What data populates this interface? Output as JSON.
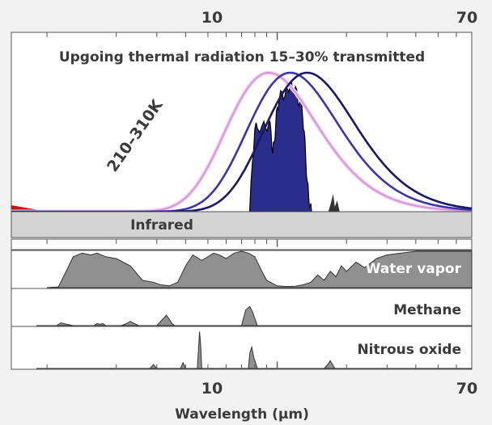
{
  "chart_data": {
    "type": "area",
    "x_axis": {
      "label": "Wavelength (µm)",
      "scale": "log",
      "range": [
        0.7,
        70
      ],
      "tick_labels": [
        "10",
        "70"
      ],
      "tick_values": [
        10,
        70
      ]
    },
    "panels": [
      {
        "name": "thermal",
        "title": "Upgoing thermal radiation 15–30% transmitted",
        "band_label": "Infrared",
        "curve_label": "210–310K",
        "curves": [
          {
            "name": "",
            "color": "#d79ad7",
            "peak_x": 9.2
          },
          {
            "name": "",
            "color": "#3c35a8",
            "peak_x": 11.4
          },
          {
            "name": "",
            "color": "#1a1763",
            "peak_x": 13.5
          }
        ],
        "transmitted_fill": "#2a2d8c",
        "transmitted_x": [
          7.6,
          7.8,
          8.0,
          8.2,
          8.6,
          8.9,
          9.2,
          9.4,
          9.55,
          9.7,
          9.85,
          10.0,
          10.2,
          10.5,
          10.8,
          11.1,
          11.4,
          11.7,
          12.0,
          12.3,
          12.6,
          12.9,
          13.1,
          13.3,
          13.5,
          13.7,
          13.9,
          14.1
        ],
        "transmitted_y": [
          0.02,
          0.35,
          0.6,
          0.6,
          0.62,
          0.6,
          0.64,
          0.58,
          0.42,
          0.5,
          0.62,
          0.75,
          0.8,
          0.86,
          0.83,
          0.88,
          0.92,
          0.86,
          0.9,
          0.78,
          0.82,
          0.68,
          0.58,
          0.38,
          0.22,
          0.1,
          0.04,
          0.0
        ],
        "curve_x": [
          0.7,
          70
        ]
      },
      {
        "name": "water",
        "label": "Water vapor",
        "fill": "#909090",
        "x": [
          1.0,
          1.12,
          1.18,
          1.3,
          1.42,
          1.55,
          1.65,
          1.8,
          2.0,
          2.3,
          2.6,
          2.9,
          3.1,
          3.4,
          3.7,
          4.0,
          4.3,
          4.7,
          5.0,
          5.3,
          5.6,
          6.0,
          6.5,
          7.0,
          7.5,
          8.0,
          8.5,
          9.0,
          10.0,
          11.0,
          12.0,
          13.0,
          14.0,
          15.0,
          16.0,
          17.0,
          18.0,
          19.0,
          20.0,
          22.0,
          24.0,
          27.0,
          30.0,
          40.0,
          50.0,
          60.0,
          70.0
        ],
        "y": [
          0.0,
          0.02,
          0.3,
          0.85,
          0.95,
          0.9,
          0.95,
          0.85,
          0.8,
          0.6,
          0.2,
          0.15,
          0.08,
          0.05,
          0.15,
          0.6,
          0.9,
          0.75,
          0.85,
          0.95,
          0.9,
          0.8,
          0.95,
          1.0,
          0.95,
          0.85,
          0.5,
          0.2,
          0.05,
          0.03,
          0.04,
          0.08,
          0.15,
          0.35,
          0.2,
          0.45,
          0.3,
          0.6,
          0.45,
          0.7,
          0.55,
          0.8,
          0.9,
          1.0,
          1.0,
          1.0,
          1.0
        ]
      },
      {
        "name": "methane",
        "label": "Methane",
        "fill": "#909090",
        "x": [
          0.9,
          1.1,
          1.15,
          1.2,
          1.3,
          1.6,
          1.65,
          1.7,
          1.75,
          1.8,
          2.1,
          2.2,
          2.3,
          2.4,
          2.5,
          3.0,
          3.2,
          3.3,
          3.4,
          3.5,
          3.6,
          7.0,
          7.3,
          7.6,
          7.8,
          8.0,
          8.2,
          70.0
        ],
        "y": [
          0.0,
          0.0,
          0.08,
          0.05,
          0.0,
          0.0,
          0.06,
          0.04,
          0.06,
          0.0,
          0.0,
          0.05,
          0.12,
          0.06,
          0.0,
          0.0,
          0.2,
          0.3,
          0.18,
          0.05,
          0.0,
          0.0,
          0.45,
          0.55,
          0.4,
          0.2,
          0.0,
          0.0
        ]
      },
      {
        "name": "nitrous",
        "label": "Nitrous oxide",
        "fill": "#909090",
        "x": [
          0.9,
          2.8,
          2.9,
          3.0,
          3.8,
          3.9,
          4.0,
          4.5,
          4.55,
          4.6,
          4.65,
          4.7,
          7.5,
          7.6,
          7.75,
          7.9,
          8.05,
          8.2,
          16.0,
          16.6,
          17.0,
          17.4,
          17.8,
          70.0
        ],
        "y": [
          0.0,
          0.0,
          0.1,
          0.0,
          0.0,
          0.15,
          0.0,
          0.0,
          0.5,
          0.95,
          0.6,
          0.0,
          0.0,
          0.4,
          0.55,
          0.3,
          0.15,
          0.0,
          0.0,
          0.1,
          0.2,
          0.1,
          0.0,
          0.0
        ]
      }
    ],
    "colors": {
      "background": "#f2f2f2",
      "panel_bg": "#ffffff",
      "gas_fill": "#909090",
      "band_fill": "#d4d4d4",
      "red_edge": "#cc1111"
    }
  }
}
